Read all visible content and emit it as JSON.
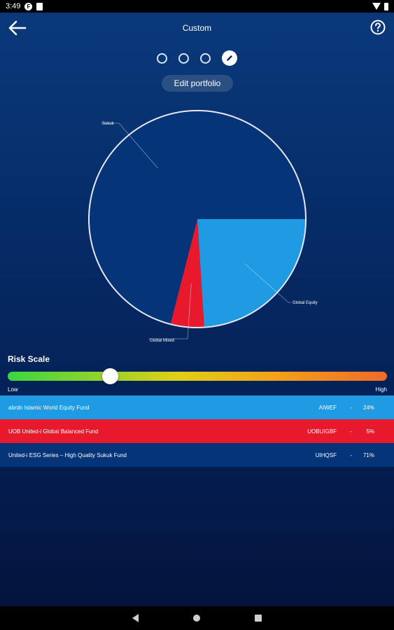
{
  "status_bar": {
    "time": "3:49",
    "icons": [
      "notification-f-icon",
      "sim-icon",
      "wifi-icon",
      "battery-icon"
    ]
  },
  "header": {
    "title": "Custom",
    "back_icon": "arrow-left-icon",
    "help_icon": "help-circle-icon"
  },
  "steps": {
    "total": 4,
    "active_index": 3,
    "active_icon": "pencil-icon"
  },
  "edit_button": {
    "label": "Edit portfolio"
  },
  "chart_data": {
    "type": "pie",
    "slices": [
      {
        "label": "Global Equity",
        "value": 24,
        "color": "#1e9be3"
      },
      {
        "label": "Global Mixed",
        "value": 5,
        "color": "#e8192c"
      },
      {
        "label": "Sukuk",
        "value": 71,
        "color": "#053478"
      }
    ]
  },
  "risk_scale": {
    "title": "Risk Scale",
    "low_label": "Low",
    "high_label": "High",
    "level": 0.27
  },
  "funds": [
    {
      "name": "abrdn Islamic World Equity Fund",
      "code": "AIWEF",
      "dash": "-",
      "percent": "24%",
      "color": "#1e9be3"
    },
    {
      "name": "UOB United-i Global Balanced Fund",
      "code": "UOBUIGBF",
      "dash": "-",
      "percent": "5%",
      "color": "#e8192c"
    },
    {
      "name": "United-i ESG Series – High Quality Sukuk Fund",
      "code": "UIHQSF",
      "dash": "-",
      "percent": "71%",
      "color": "#053478"
    }
  ],
  "nav_bar": {
    "icons": [
      "nav-back-icon",
      "nav-home-icon",
      "nav-recents-icon"
    ]
  }
}
